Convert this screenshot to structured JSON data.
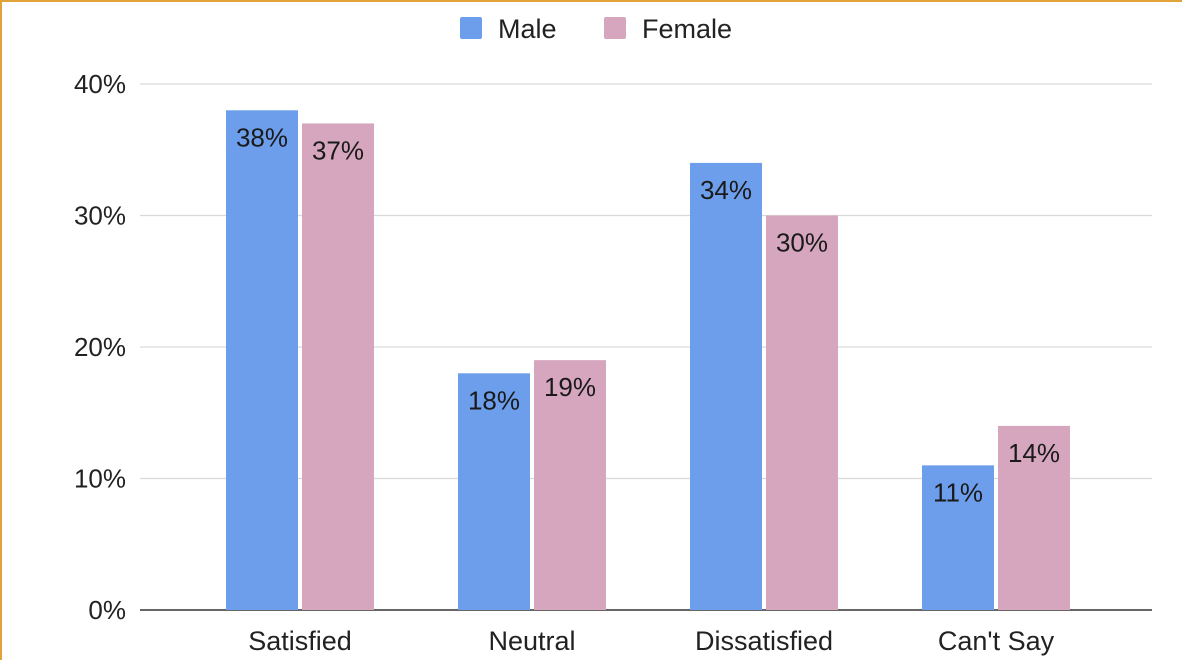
{
  "chart_data": {
    "type": "bar",
    "title": "",
    "xlabel": "",
    "ylabel": "",
    "categories": [
      "Satisfied",
      "Neutral",
      "Dissatisfied",
      "Can't Say"
    ],
    "series": [
      {
        "name": "Male",
        "color": "#6d9eeb",
        "values": [
          38,
          18,
          34,
          11
        ],
        "labels": [
          "38%",
          "18%",
          "34%",
          "11%"
        ]
      },
      {
        "name": "Female",
        "color": "#d5a6bd",
        "values": [
          37,
          19,
          30,
          14
        ],
        "labels": [
          "37%",
          "19%",
          "30%",
          "14%"
        ]
      }
    ],
    "ylim": [
      0,
      40
    ],
    "yticks": [
      0,
      10,
      20,
      30,
      40
    ],
    "ytick_labels": [
      "0%",
      "10%",
      "20%",
      "30%",
      "40%"
    ],
    "grid": true,
    "legend_position": "top-center"
  }
}
